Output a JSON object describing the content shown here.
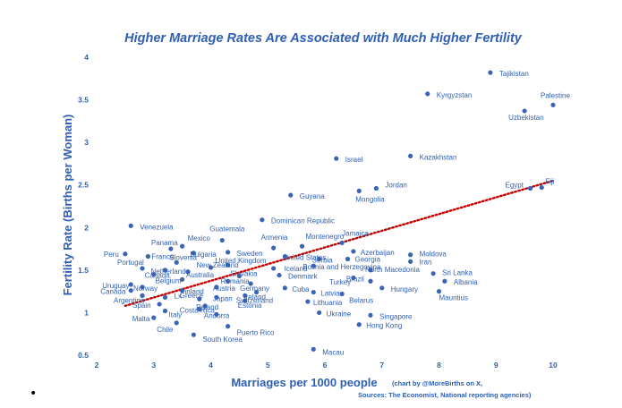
{
  "chart_data": {
    "type": "scatter",
    "title": "Higher Marriage Rates Are Associated with Much Higher Fertility",
    "xlabel": "Marriages per 1000 people",
    "ylabel": "Fertility Rate (Births per Woman)",
    "xlim": [
      2,
      10.5
    ],
    "ylim": [
      0.5,
      4
    ],
    "xticks": [
      "2",
      "3",
      "4",
      "5",
      "6",
      "7",
      "8",
      "9",
      "10"
    ],
    "yticks": [
      "0.5",
      "1",
      "1.5",
      "2",
      "2.5",
      "3",
      "3.5",
      "4"
    ],
    "trendline": {
      "x": [
        2.5,
        10
      ],
      "y": [
        1.08,
        2.55
      ],
      "color": "#c00000",
      "style": "dotted"
    },
    "marker_color": "#3b64b5",
    "points": [
      {
        "label": "Tajikistan",
        "x": 8.9,
        "y": 3.82
      },
      {
        "label": "Kyrgyzstan",
        "x": 7.8,
        "y": 3.57
      },
      {
        "label": "Palestine",
        "x": 10.0,
        "y": 3.44
      },
      {
        "label": "Uzbekistan",
        "x": 9.5,
        "y": 3.37
      },
      {
        "label": "Israel",
        "x": 6.2,
        "y": 2.81
      },
      {
        "label": "Kazakhstan",
        "x": 7.5,
        "y": 2.84
      },
      {
        "label": "Jordan",
        "x": 6.9,
        "y": 2.46
      },
      {
        "label": "Mongolia",
        "x": 6.6,
        "y": 2.43
      },
      {
        "label": "Guyana",
        "x": 5.4,
        "y": 2.38
      },
      {
        "label": "Egypt",
        "x": 9.6,
        "y": 2.46
      },
      {
        "label": "Fiji",
        "x": 9.8,
        "y": 2.47
      },
      {
        "label": "Dominican Republic",
        "x": 4.9,
        "y": 2.09
      },
      {
        "label": "Venezuela",
        "x": 2.6,
        "y": 2.02
      },
      {
        "label": "Guatemala",
        "x": 4.2,
        "y": 1.85
      },
      {
        "label": "Armenia",
        "x": 5.1,
        "y": 1.76
      },
      {
        "label": "Jamaica",
        "x": 6.3,
        "y": 1.82
      },
      {
        "label": "Mexico",
        "x": 3.5,
        "y": 1.78
      },
      {
        "label": "Montenegro",
        "x": 5.6,
        "y": 1.78
      },
      {
        "label": "Panama",
        "x": 3.3,
        "y": 1.75
      },
      {
        "label": "Sweden",
        "x": 4.3,
        "y": 1.71
      },
      {
        "label": "United States",
        "x": 5.3,
        "y": 1.66
      },
      {
        "label": "Azerbaijan",
        "x": 6.5,
        "y": 1.72
      },
      {
        "label": "Bulgaria",
        "x": 3.7,
        "y": 1.7
      },
      {
        "label": "Peru",
        "x": 2.5,
        "y": 1.69
      },
      {
        "label": "France",
        "x": 2.9,
        "y": 1.66
      },
      {
        "label": "Moldova",
        "x": 7.5,
        "y": 1.68
      },
      {
        "label": "Serbia",
        "x": 5.9,
        "y": 1.63
      },
      {
        "label": "Georgia",
        "x": 6.4,
        "y": 1.63
      },
      {
        "label": "Iran",
        "x": 7.5,
        "y": 1.6
      },
      {
        "label": "Slovenia",
        "x": 3.4,
        "y": 1.59
      },
      {
        "label": "United Kingdom",
        "x": 4.3,
        "y": 1.56
      },
      {
        "label": "Bosnia and Herzegovina",
        "x": 5.8,
        "y": 1.55
      },
      {
        "label": "Portugal",
        "x": 2.8,
        "y": 1.52
      },
      {
        "label": "Netherlands",
        "x": 3.2,
        "y": 1.5
      },
      {
        "label": "New Zealand",
        "x": 4.0,
        "y": 1.53
      },
      {
        "label": "Iceland",
        "x": 5.1,
        "y": 1.52
      },
      {
        "label": "North Macedonia",
        "x": 6.8,
        "y": 1.5
      },
      {
        "label": "Sri Lanka",
        "x": 7.9,
        "y": 1.46
      },
      {
        "label": "Australia",
        "x": 3.6,
        "y": 1.48
      },
      {
        "label": "Canada",
        "x": 3.0,
        "y": 1.45
      },
      {
        "label": "Slovakia",
        "x": 4.5,
        "y": 1.43
      },
      {
        "label": "Denmark",
        "x": 5.2,
        "y": 1.44
      },
      {
        "label": "Brazil",
        "x": 6.5,
        "y": 1.41
      },
      {
        "label": "Albania",
        "x": 8.1,
        "y": 1.37
      },
      {
        "label": "Belgium",
        "x": 3.5,
        "y": 1.39
      },
      {
        "label": "Romania",
        "x": 4.3,
        "y": 1.37
      },
      {
        "label": "Turkey",
        "x": 6.8,
        "y": 1.37
      },
      {
        "label": "Uruguay",
        "x": 2.6,
        "y": 1.33
      },
      {
        "label": "Norway",
        "x": 2.8,
        "y": 1.3
      },
      {
        "label": "Germany",
        "x": 4.7,
        "y": 1.34
      },
      {
        "label": "Austria",
        "x": 4.1,
        "y": 1.3
      },
      {
        "label": "Cuba",
        "x": 5.3,
        "y": 1.29
      },
      {
        "label": "Hungary",
        "x": 7.0,
        "y": 1.29
      },
      {
        "label": "Mauritius",
        "x": 8.0,
        "y": 1.25
      },
      {
        "label": "Finland",
        "x": 3.5,
        "y": 1.26
      },
      {
        "label": "Ireland",
        "x": 4.8,
        "y": 1.24
      },
      {
        "label": "Canada",
        "x": 2.6,
        "y": 1.26
      },
      {
        "label": "Latvia",
        "x": 5.8,
        "y": 1.24
      },
      {
        "label": "Belarus",
        "x": 6.3,
        "y": 1.22
      },
      {
        "label": "Argentina",
        "x": 2.8,
        "y": 1.2
      },
      {
        "label": "Switzerland",
        "x": 4.6,
        "y": 1.2
      },
      {
        "label": "Greece",
        "x": 3.8,
        "y": 1.16
      },
      {
        "label": "Lx",
        "x": 3.2,
        "y": 1.18
      },
      {
        "label": "Japan",
        "x": 4.1,
        "y": 1.18
      },
      {
        "label": "Estonia",
        "x": 4.6,
        "y": 1.14
      },
      {
        "label": "Lithuania",
        "x": 5.7,
        "y": 1.13
      },
      {
        "label": "Spain",
        "x": 3.1,
        "y": 1.1
      },
      {
        "label": "Poland",
        "x": 3.9,
        "y": 1.08
      },
      {
        "label": "Costa Rica",
        "x": 3.8,
        "y": 1.04
      },
      {
        "label": "Italy",
        "x": 3.2,
        "y": 1.02
      },
      {
        "label": "Ukraine",
        "x": 5.9,
        "y": 1.0
      },
      {
        "label": "Andorra",
        "x": 4.1,
        "y": 0.98
      },
      {
        "label": "Singapore",
        "x": 6.8,
        "y": 0.97
      },
      {
        "label": "Malta",
        "x": 3.0,
        "y": 0.94
      },
      {
        "label": "Hong Kong",
        "x": 6.6,
        "y": 0.86
      },
      {
        "label": "Puerto Rico",
        "x": 4.3,
        "y": 0.84
      },
      {
        "label": "Chile",
        "x": 3.4,
        "y": 0.88
      },
      {
        "label": "South Korea",
        "x": 3.7,
        "y": 0.74
      },
      {
        "label": "Macau",
        "x": 5.8,
        "y": 0.57
      }
    ]
  },
  "credit": "(chart by @MoreBirths on X,",
  "sources": "Sources: The Economist, National reporting agencies)",
  "bullet": "•"
}
